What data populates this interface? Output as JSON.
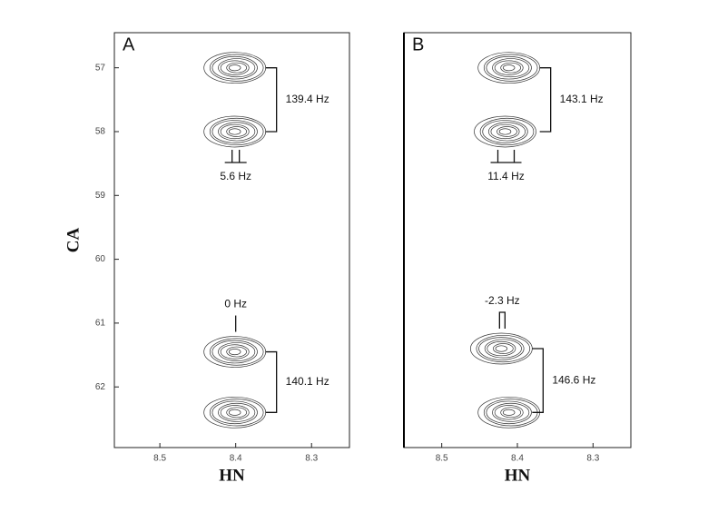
{
  "chart_data": [
    {
      "type": "contour",
      "panel": "A",
      "xlabel": "HN",
      "ylabel": "CA",
      "xlim": [
        8.56,
        8.25
      ],
      "xticks": [
        8.5,
        8.4,
        8.3
      ],
      "ylim": [
        56.45,
        62.95
      ],
      "yticks": [
        57,
        58,
        59,
        60,
        61,
        62
      ],
      "peaks": {
        "x": [
          8.4,
          8.4,
          8.4,
          8.4
        ],
        "y": [
          57.0,
          58.0,
          61.45,
          62.4
        ]
      },
      "splittings": [
        "139.4 Hz",
        "5.6 Hz",
        "0 Hz",
        "140.1 Hz"
      ]
    },
    {
      "type": "contour",
      "panel": "B",
      "xlabel": "HN",
      "xlim": [
        8.55,
        8.25
      ],
      "xticks": [
        8.5,
        8.4,
        8.3
      ],
      "ylim": [
        56.45,
        62.95
      ],
      "peaks": {
        "x": [
          8.41,
          8.415,
          8.42,
          8.41
        ],
        "y": [
          57.0,
          58.0,
          61.4,
          62.4
        ]
      },
      "splittings": [
        "143.1 Hz",
        "11.4 Hz",
        "-2.3 Hz",
        "146.6 Hz"
      ]
    }
  ]
}
